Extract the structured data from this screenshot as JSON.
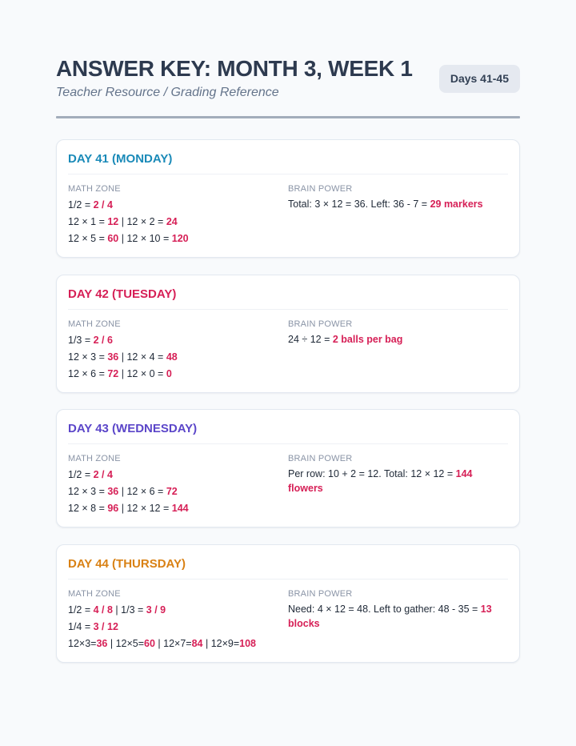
{
  "header": {
    "title": "ANSWER KEY: MONTH 3, WEEK 1",
    "subtitle": "Teacher Resource / Grading Reference",
    "badge": "Days 41-45"
  },
  "labels": {
    "math": "MATH ZONE",
    "brain": "BRAIN POWER"
  },
  "days": [
    {
      "title": "DAY 41 (MONDAY)",
      "color": "#1a8ab8",
      "math": [
        [
          {
            "t": "1/2 = "
          },
          {
            "t": "2 / 4",
            "a": 1
          }
        ],
        [
          {
            "t": "12 × 1 = "
          },
          {
            "t": "12",
            "a": 1
          },
          {
            "t": " | 12 × 2 = "
          },
          {
            "t": "24",
            "a": 1
          }
        ],
        [
          {
            "t": "12 × 5 = "
          },
          {
            "t": "60",
            "a": 1
          },
          {
            "t": " | 12 × 10 = "
          },
          {
            "t": "120",
            "a": 1
          }
        ]
      ],
      "brain": [
        {
          "t": "Total: 3 × 12 = 36. Left: 36 - 7 = "
        },
        {
          "t": "29 markers",
          "a": 1
        }
      ]
    },
    {
      "title": "DAY 42 (TUESDAY)",
      "color": "#d61f56",
      "math": [
        [
          {
            "t": "1/3 = "
          },
          {
            "t": "2 / 6",
            "a": 1
          }
        ],
        [
          {
            "t": "12 × 3 = "
          },
          {
            "t": "36",
            "a": 1
          },
          {
            "t": " | 12 × 4 = "
          },
          {
            "t": "48",
            "a": 1
          }
        ],
        [
          {
            "t": "12 × 6 = "
          },
          {
            "t": "72",
            "a": 1
          },
          {
            "t": " | 12 × 0 = "
          },
          {
            "t": "0",
            "a": 1
          }
        ]
      ],
      "brain": [
        {
          "t": "24 ÷ 12 = "
        },
        {
          "t": "2 balls per bag",
          "a": 1
        }
      ]
    },
    {
      "title": "DAY 43 (WEDNESDAY)",
      "color": "#5b46c9",
      "math": [
        [
          {
            "t": "1/2 = "
          },
          {
            "t": "2 / 4",
            "a": 1
          }
        ],
        [
          {
            "t": "12 × 3 = "
          },
          {
            "t": "36",
            "a": 1
          },
          {
            "t": " | 12 × 6 = "
          },
          {
            "t": "72",
            "a": 1
          }
        ],
        [
          {
            "t": "12 × 8 = "
          },
          {
            "t": "96",
            "a": 1
          },
          {
            "t": " | 12 × 12 = "
          },
          {
            "t": "144",
            "a": 1
          }
        ]
      ],
      "brain": [
        {
          "t": "Per row: 10 + 2 = 12. Total: 12 × 12 = "
        },
        {
          "t": "144 flowers",
          "a": 1
        }
      ]
    },
    {
      "title": "DAY 44 (THURSDAY)",
      "color": "#d98114",
      "math": [
        [
          {
            "t": "1/2 = "
          },
          {
            "t": "4 / 8",
            "a": 1
          },
          {
            "t": " | 1/3 = "
          },
          {
            "t": "3 / 9",
            "a": 1
          }
        ],
        [
          {
            "t": "1/4 = "
          },
          {
            "t": "3 / 12",
            "a": 1
          }
        ],
        [
          {
            "t": "12×3="
          },
          {
            "t": "36",
            "a": 1
          },
          {
            "t": " | 12×5="
          },
          {
            "t": "60",
            "a": 1
          },
          {
            "t": " | 12×7="
          },
          {
            "t": "84",
            "a": 1
          },
          {
            "t": " | 12×9="
          },
          {
            "t": "108",
            "a": 1
          }
        ]
      ],
      "brain": [
        {
          "t": "Need: 4 × 12 = 48. Left to gather: 48 - 35 = "
        },
        {
          "t": "13 blocks",
          "a": 1
        }
      ]
    }
  ]
}
